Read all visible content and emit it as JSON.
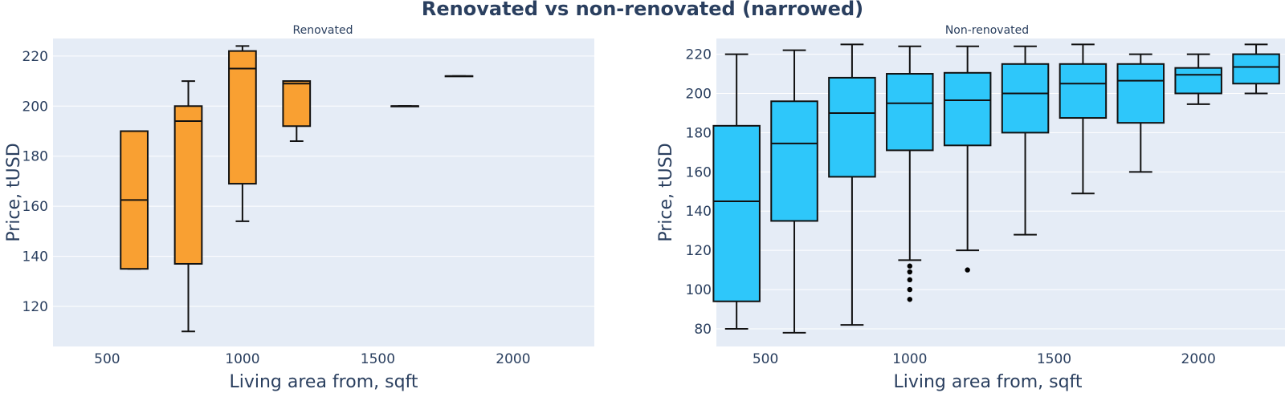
{
  "figure_title": "Renovated vs non-renovated (narrowed)",
  "chart_data": [
    {
      "type": "box",
      "title": "Renovated",
      "xlabel": "Living area from, sqft",
      "ylabel": "Price, tUSD",
      "xlim": [
        300,
        2300
      ],
      "ylim": [
        104,
        227
      ],
      "xticks": [
        500,
        1000,
        1500,
        2000
      ],
      "yticks": [
        120,
        140,
        160,
        180,
        200,
        220
      ],
      "fill_color": "#f9a032",
      "box_width": 100,
      "boxes": [
        {
          "x": 600,
          "q1": 135,
          "median": 162.5,
          "q3": 190,
          "whisker_low": 135,
          "whisker_high": 190,
          "outliers": []
        },
        {
          "x": 800,
          "q1": 137,
          "median": 194,
          "q3": 200,
          "whisker_low": 110,
          "whisker_high": 210,
          "outliers": []
        },
        {
          "x": 1000,
          "q1": 169,
          "median": 215,
          "q3": 222,
          "whisker_low": 154,
          "whisker_high": 224,
          "outliers": []
        },
        {
          "x": 1200,
          "q1": 192,
          "median": 209,
          "q3": 210,
          "whisker_low": 186,
          "whisker_high": 210,
          "outliers": []
        },
        {
          "x": 1600,
          "q1": 200,
          "median": 200,
          "q3": 200,
          "whisker_low": 200,
          "whisker_high": 200,
          "outliers": []
        },
        {
          "x": 1800,
          "q1": 212,
          "median": 212,
          "q3": 212,
          "whisker_low": 212,
          "whisker_high": 212,
          "outliers": []
        }
      ]
    },
    {
      "type": "box",
      "title": "Non-renovated",
      "xlabel": "Living area from, sqft",
      "ylabel": "Price, tUSD",
      "xlim": [
        330,
        2300
      ],
      "ylim": [
        71,
        228
      ],
      "xticks": [
        500,
        1000,
        1500,
        2000
      ],
      "yticks": [
        80,
        100,
        120,
        140,
        160,
        180,
        200,
        220
      ],
      "fill_color": "#2ec7fa",
      "box_width": 160,
      "boxes": [
        {
          "x": 400,
          "q1": 94,
          "median": 145,
          "q3": 183.5,
          "whisker_low": 80,
          "whisker_high": 220,
          "outliers": []
        },
        {
          "x": 600,
          "q1": 135,
          "median": 174.5,
          "q3": 196,
          "whisker_low": 78,
          "whisker_high": 222,
          "outliers": []
        },
        {
          "x": 800,
          "q1": 157.5,
          "median": 190,
          "q3": 208,
          "whisker_low": 82,
          "whisker_high": 225,
          "outliers": []
        },
        {
          "x": 1000,
          "q1": 171,
          "median": 195,
          "q3": 210,
          "whisker_low": 115,
          "whisker_high": 224,
          "outliers": [
            112,
            109,
            105,
            100,
            95
          ]
        },
        {
          "x": 1200,
          "q1": 173.5,
          "median": 196.5,
          "q3": 210.5,
          "whisker_low": 120,
          "whisker_high": 224,
          "outliers": [
            110
          ]
        },
        {
          "x": 1400,
          "q1": 180,
          "median": 200,
          "q3": 215,
          "whisker_low": 128,
          "whisker_high": 224,
          "outliers": []
        },
        {
          "x": 1600,
          "q1": 187.5,
          "median": 205,
          "q3": 215,
          "whisker_low": 149,
          "whisker_high": 225,
          "outliers": []
        },
        {
          "x": 1800,
          "q1": 185,
          "median": 206.5,
          "q3": 215,
          "whisker_low": 160,
          "whisker_high": 220,
          "outliers": []
        },
        {
          "x": 2000,
          "q1": 200,
          "median": 209.5,
          "q3": 213,
          "whisker_low": 194.5,
          "whisker_high": 220,
          "outliers": []
        },
        {
          "x": 2200,
          "q1": 205,
          "median": 213.5,
          "q3": 220,
          "whisker_low": 200,
          "whisker_high": 225,
          "outliers": []
        }
      ]
    }
  ]
}
